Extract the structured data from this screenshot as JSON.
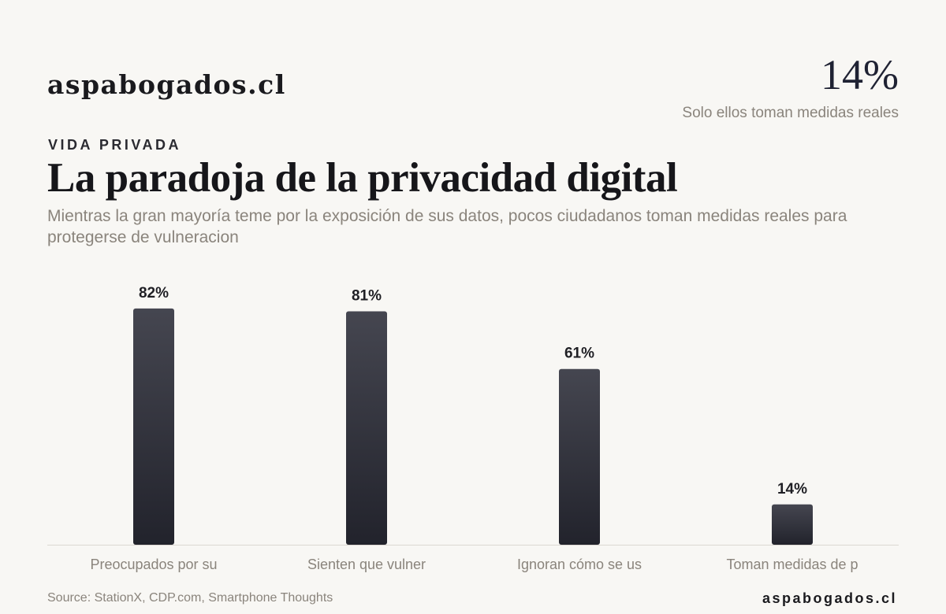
{
  "header": {
    "brand": "aspabogados.cl",
    "highlight_value": "14%",
    "highlight_caption": "Solo ellos toman medidas reales"
  },
  "kicker": "VIDA PRIVADA",
  "title": "La paradoja de la privacidad digital",
  "subtitle": "Mientras la gran mayoría teme por la exposición de sus datos, pocos ciudadanos toman medidas reales para protegerse de vulneracion",
  "chart_data": {
    "type": "bar",
    "categories": [
      "Preocupados por su",
      "Sienten que vulner",
      "Ignoran cómo se us",
      "Toman medidas de p"
    ],
    "values": [
      82,
      81,
      61,
      14
    ],
    "value_labels": [
      "82%",
      "81%",
      "61%",
      "14%"
    ],
    "ylim": [
      0,
      100
    ],
    "grid": false,
    "colors": {
      "bar_top": "#454650",
      "bar_bottom": "#22232c",
      "baseline": "#dcd8d2",
      "label": "#1f1f24",
      "category": "#8a847c"
    }
  },
  "footer": {
    "source": "Source: StationX, CDP.com, Smartphone Thoughts",
    "brand": "aspabogados.cl"
  }
}
